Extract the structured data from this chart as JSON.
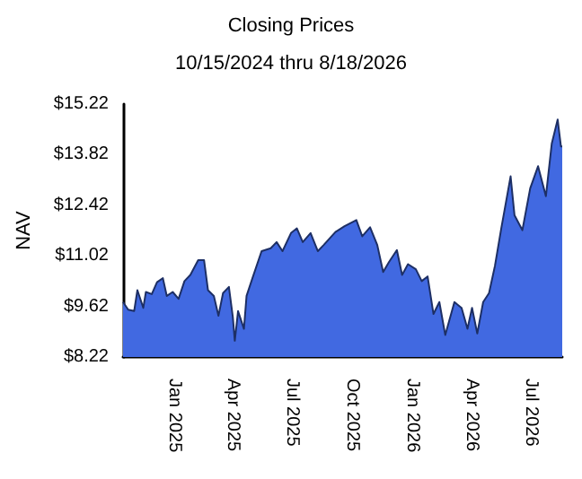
{
  "chart_data": {
    "type": "area",
    "title": "Closing Prices",
    "subtitle": "10/15/2024 thru 8/18/2026",
    "ylabel": "NAV",
    "x": [
      "2024-10-15",
      "2024-10-23",
      "2024-11-01",
      "2024-11-06",
      "2024-11-15",
      "2024-11-19",
      "2024-11-28",
      "2024-12-06",
      "2024-12-15",
      "2024-12-21",
      "2024-12-30",
      "2025-01-08",
      "2025-01-17",
      "2025-01-26",
      "2025-02-07",
      "2025-02-16",
      "2025-02-22",
      "2025-03-03",
      "2025-03-10",
      "2025-03-17",
      "2025-03-26",
      "2025-04-01",
      "2025-04-04",
      "2025-04-09",
      "2025-04-18",
      "2025-04-22",
      "2025-05-01",
      "2025-05-15",
      "2025-05-29",
      "2025-06-07",
      "2025-06-16",
      "2025-06-29",
      "2025-07-08",
      "2025-07-17",
      "2025-07-29",
      "2025-08-09",
      "2025-08-18",
      "2025-09-05",
      "2025-09-19",
      "2025-10-07",
      "2025-10-16",
      "2025-10-28",
      "2025-11-08",
      "2025-11-17",
      "2025-11-26",
      "2025-12-08",
      "2025-12-16",
      "2025-12-25",
      "2026-01-06",
      "2026-01-15",
      "2026-01-24",
      "2026-02-02",
      "2026-02-11",
      "2026-02-20",
      "2026-03-06",
      "2026-03-17",
      "2026-03-26",
      "2026-04-02",
      "2026-04-10",
      "2026-04-19",
      "2026-04-28",
      "2026-05-07",
      "2026-05-17",
      "2026-05-31",
      "2026-06-06",
      "2026-06-18",
      "2026-06-30",
      "2026-07-12",
      "2026-07-24",
      "2026-08-02",
      "2026-08-11",
      "2026-08-16",
      "2026-08-18"
    ],
    "series": [
      {
        "color": "#4169e1",
        "values": [
          9.74,
          9.53,
          9.49,
          10.07,
          9.58,
          10.02,
          9.96,
          10.29,
          10.4,
          9.91,
          10.02,
          9.83,
          10.32,
          10.49,
          10.9,
          10.9,
          10.07,
          9.91,
          9.36,
          9.99,
          10.16,
          9.33,
          8.67,
          9.49,
          9.0,
          9.91,
          10.4,
          11.15,
          11.23,
          11.4,
          11.15,
          11.65,
          11.78,
          11.4,
          11.65,
          11.15,
          11.32,
          11.68,
          11.84,
          12.01,
          11.56,
          11.81,
          11.32,
          10.57,
          10.85,
          11.18,
          10.49,
          10.79,
          10.65,
          10.32,
          10.45,
          9.41,
          9.74,
          8.83,
          9.74,
          9.58,
          9.0,
          9.58,
          8.87,
          9.74,
          9.99,
          10.74,
          11.81,
          13.22,
          12.14,
          11.73,
          12.89,
          13.5,
          12.67,
          14.13,
          14.79,
          14.05,
          14.05
        ]
      }
    ],
    "xlim": [
      "2024-10-15",
      "2026-08-18"
    ],
    "xticks": [
      {
        "value": "2025-01-01",
        "label": "Jan 2025"
      },
      {
        "value": "2025-04-01",
        "label": "Apr 2025"
      },
      {
        "value": "2025-07-01",
        "label": "Jul 2025"
      },
      {
        "value": "2025-10-01",
        "label": "Oct 2025"
      },
      {
        "value": "2026-01-01",
        "label": "Jan 2026"
      },
      {
        "value": "2026-04-01",
        "label": "Apr 2026"
      },
      {
        "value": "2026-07-01",
        "label": "Jul 2026"
      }
    ],
    "ylim": [
      8.22,
      15.22
    ],
    "yticks": [
      {
        "value": 8.22,
        "label": "$8.22"
      },
      {
        "value": 9.62,
        "label": "$9.62"
      },
      {
        "value": 11.02,
        "label": "$11.02"
      },
      {
        "value": 12.42,
        "label": "$12.42"
      },
      {
        "value": 13.82,
        "label": "$13.82"
      },
      {
        "value": 15.22,
        "label": "$15.22"
      }
    ],
    "grid": false,
    "marker": "none"
  }
}
